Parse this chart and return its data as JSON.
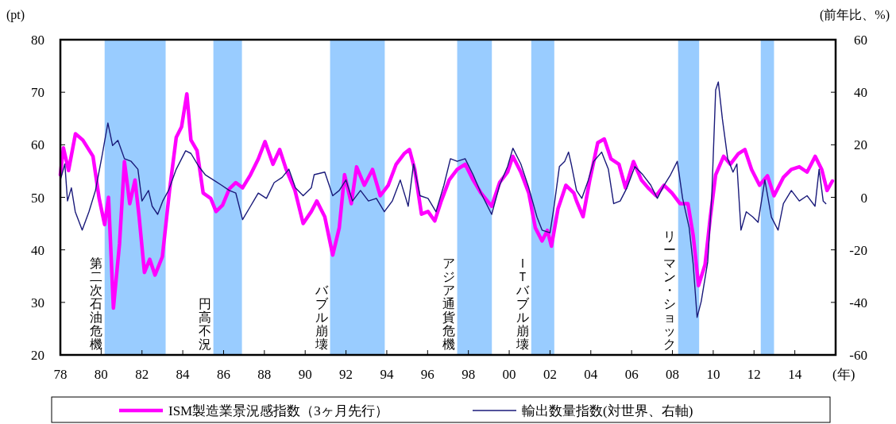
{
  "chart_data": {
    "type": "line",
    "xlabel": "(年)",
    "ylabel": "(pt)",
    "y2label": "(前年比、%)",
    "legend": "bottom",
    "grid": false,
    "xlim": [
      1978,
      2016
    ],
    "xticks": [
      {
        "value": 1978,
        "label": "78"
      },
      {
        "value": 1980,
        "label": "80"
      },
      {
        "value": 1982,
        "label": "82"
      },
      {
        "value": 1984,
        "label": "84"
      },
      {
        "value": 1986,
        "label": "86"
      },
      {
        "value": 1988,
        "label": "88"
      },
      {
        "value": 1990,
        "label": "90"
      },
      {
        "value": 1992,
        "label": "92"
      },
      {
        "value": 1994,
        "label": "94"
      },
      {
        "value": 1996,
        "label": "96"
      },
      {
        "value": 1998,
        "label": "98"
      },
      {
        "value": 2000,
        "label": "00"
      },
      {
        "value": 2002,
        "label": "02"
      },
      {
        "value": 2004,
        "label": "04"
      },
      {
        "value": 2006,
        "label": "06"
      },
      {
        "value": 2008,
        "label": "08"
      },
      {
        "value": 2010,
        "label": "10"
      },
      {
        "value": 2012,
        "label": "12"
      },
      {
        "value": 2014,
        "label": "14"
      }
    ],
    "ylim": [
      20,
      80
    ],
    "yticks": [
      20,
      30,
      40,
      50,
      60,
      70,
      80
    ],
    "y2lim": [
      -60,
      60
    ],
    "y2ticks": [
      -60,
      -40,
      -20,
      0,
      20,
      40,
      60
    ],
    "bands": [
      {
        "axis": "x",
        "from": 1980.17,
        "to": 1983.16,
        "label": "第二次石油危機",
        "color": "#99ccff"
      },
      {
        "axis": "x",
        "from": 1985.5,
        "to": 1986.9,
        "label": "円高不況",
        "color": "#99ccff"
      },
      {
        "axis": "x",
        "from": 1991.22,
        "to": 1993.9,
        "label": "バブル崩壊",
        "color": "#99ccff"
      },
      {
        "axis": "x",
        "from": 1997.45,
        "to": 1999.15,
        "label": "アジア通貨危機",
        "color": "#99ccff"
      },
      {
        "axis": "x",
        "from": 2001.08,
        "to": 2002.21,
        "label": "ＩＴバブル崩壊",
        "color": "#99ccff"
      },
      {
        "axis": "x",
        "from": 2008.28,
        "to": 2009.31,
        "label": "リーマン・ショック",
        "color": "#99ccff"
      },
      {
        "axis": "x",
        "from": 2012.33,
        "to": 2012.98,
        "color": "#99ccff"
      }
    ],
    "series": [
      {
        "name": "ISM製造業景況感指数（3ヶ月先行）",
        "color": "#ff00ff",
        "x": [
          1978.0,
          1978.15,
          1978.4,
          1978.74,
          1979.1,
          1979.6,
          1979.9,
          1980.17,
          1980.36,
          1980.6,
          1980.9,
          1981.14,
          1981.4,
          1981.66,
          1981.86,
          1982.12,
          1982.38,
          1982.64,
          1983.0,
          1983.35,
          1983.68,
          1983.94,
          1984.2,
          1984.4,
          1984.7,
          1985.0,
          1985.37,
          1985.63,
          1985.95,
          1986.28,
          1986.6,
          1986.93,
          1987.32,
          1987.7,
          1988.03,
          1988.42,
          1988.75,
          1989.07,
          1989.5,
          1989.9,
          1990.3,
          1990.57,
          1990.96,
          1991.35,
          1991.67,
          1991.93,
          1992.26,
          1992.52,
          1992.9,
          1993.3,
          1993.68,
          1994.07,
          1994.46,
          1994.85,
          1995.11,
          1995.37,
          1995.7,
          1996.02,
          1996.35,
          1996.67,
          1997.06,
          1997.45,
          1997.84,
          1998.23,
          1998.62,
          1999.14,
          1999.53,
          1999.92,
          2000.18,
          2000.57,
          2000.96,
          2001.28,
          2001.61,
          2001.87,
          2002.07,
          2002.39,
          2002.78,
          2003.17,
          2003.3,
          2003.62,
          2003.95,
          2004.34,
          2004.66,
          2004.99,
          2005.38,
          2005.7,
          2006.09,
          2006.48,
          2006.81,
          2007.2,
          2007.59,
          2007.98,
          2008.37,
          2008.76,
          2009.02,
          2009.28,
          2009.6,
          2009.86,
          2010.12,
          2010.51,
          2010.84,
          2011.23,
          2011.55,
          2011.88,
          2012.27,
          2012.66,
          2012.98,
          2013.44,
          2013.83,
          2014.22,
          2014.6,
          2015.0,
          2015.32,
          2015.58,
          2015.84
        ],
        "values": [
          54.3,
          59.4,
          55.1,
          62.1,
          60.9,
          57.8,
          49.8,
          44.8,
          50.0,
          28.9,
          41.2,
          56.8,
          48.8,
          53.3,
          46.3,
          35.7,
          38.2,
          35.2,
          38.7,
          51.3,
          61.4,
          63.4,
          69.7,
          60.9,
          58.9,
          50.8,
          49.8,
          47.3,
          48.5,
          51.6,
          52.8,
          51.8,
          54.3,
          57.3,
          60.6,
          56.3,
          59.1,
          55.3,
          51.3,
          45.0,
          47.3,
          49.3,
          46.3,
          39.0,
          44.2,
          54.3,
          48.8,
          55.8,
          52.3,
          55.3,
          50.3,
          52.3,
          56.3,
          58.3,
          59.1,
          55.3,
          46.8,
          47.3,
          45.5,
          49.3,
          53.3,
          55.3,
          56.3,
          53.3,
          50.8,
          48.3,
          52.8,
          54.8,
          57.8,
          54.8,
          50.8,
          44.2,
          41.7,
          43.7,
          40.7,
          47.8,
          52.3,
          50.8,
          49.3,
          46.3,
          53.3,
          60.4,
          61.1,
          57.3,
          56.3,
          51.8,
          56.8,
          53.3,
          51.8,
          50.3,
          52.3,
          50.8,
          48.8,
          48.8,
          42.7,
          33.2,
          37.2,
          46.3,
          54.3,
          57.8,
          56.3,
          58.3,
          59.1,
          55.3,
          52.3,
          54.1,
          50.3,
          53.8,
          55.3,
          55.8,
          54.8,
          57.8,
          55.3,
          51.3,
          53.1
        ]
      },
      {
        "name": "輸出数量指数(対世界、右軸)",
        "color": "#1a1a7a",
        "axis": "y2",
        "x": [
          1978.0,
          1978.22,
          1978.35,
          1978.54,
          1978.73,
          1979.07,
          1979.4,
          1979.72,
          1980.04,
          1980.33,
          1980.56,
          1980.82,
          1981.14,
          1981.47,
          1981.8,
          1982.0,
          1982.32,
          1982.5,
          1982.77,
          1983.02,
          1983.3,
          1983.68,
          1984.14,
          1984.4,
          1984.79,
          1985.1,
          1985.5,
          1985.9,
          1986.28,
          1986.6,
          1986.93,
          1987.32,
          1987.7,
          1988.1,
          1988.48,
          1988.87,
          1989.2,
          1989.52,
          1989.9,
          1990.3,
          1990.44,
          1990.96,
          1991.35,
          1991.67,
          1992.0,
          1992.32,
          1992.71,
          1993.1,
          1993.49,
          1993.88,
          1994.27,
          1994.66,
          1995.05,
          1995.31,
          1995.63,
          1996.02,
          1996.41,
          1996.8,
          1997.12,
          1997.45,
          1997.84,
          1998.23,
          1998.62,
          1999.14,
          1999.53,
          1999.92,
          2000.18,
          2000.57,
          2000.96,
          2001.36,
          2001.61,
          2002.0,
          2002.2,
          2002.46,
          2002.72,
          2002.91,
          2003.04,
          2003.3,
          2003.56,
          2003.88,
          2004.14,
          2004.53,
          2004.86,
          2005.12,
          2005.44,
          2005.77,
          2006.16,
          2006.55,
          2006.94,
          2007.26,
          2007.59,
          2007.91,
          2008.24,
          2008.5,
          2008.82,
          2009.02,
          2009.21,
          2009.41,
          2009.73,
          2009.93,
          2010.12,
          2010.25,
          2010.45,
          2010.71,
          2010.97,
          2011.16,
          2011.36,
          2011.62,
          2011.94,
          2012.2,
          2012.53,
          2012.85,
          2013.18,
          2013.44,
          2013.83,
          2014.22,
          2014.6,
          2014.99,
          2015.19,
          2015.39,
          2015.52
        ],
        "values": [
          6.6,
          12.7,
          -1.4,
          3.6,
          -5.5,
          -12.5,
          -5.5,
          2.6,
          15.7,
          28.3,
          19.7,
          21.7,
          14.7,
          13.7,
          10.7,
          -1.4,
          2.6,
          -3.4,
          -6.5,
          -1.4,
          2.6,
          10.7,
          17.7,
          16.7,
          11.7,
          8.6,
          6.6,
          4.6,
          2.6,
          1.6,
          -8.5,
          -3.4,
          1.6,
          -0.4,
          5.6,
          7.6,
          10.7,
          3.6,
          0.6,
          3.6,
          8.6,
          9.6,
          0.6,
          2.6,
          6.6,
          -1.4,
          2.6,
          -1.4,
          -0.4,
          -5.5,
          -1.4,
          6.6,
          -3.4,
          12.7,
          0.6,
          -0.4,
          -5.5,
          4.6,
          14.7,
          13.7,
          14.7,
          8.6,
          1.6,
          -6.5,
          4.6,
          11.7,
          18.7,
          12.7,
          3.6,
          -7.5,
          -12.5,
          -13.5,
          -3.4,
          11.7,
          13.7,
          17.2,
          12.7,
          2.6,
          -0.4,
          6.6,
          13.7,
          17.2,
          10.7,
          -2.4,
          -1.4,
          3.6,
          11.7,
          8.6,
          4.6,
          -0.4,
          4.6,
          8.6,
          13.7,
          -0.4,
          -11.5,
          -25.6,
          -45.7,
          -39.7,
          -24.6,
          0.6,
          40.9,
          43.9,
          29.8,
          14.7,
          9.6,
          12.7,
          -12.5,
          -5.5,
          -7.5,
          -9.5,
          6.6,
          -7.5,
          -12.5,
          -2.4,
          2.6,
          -1.4,
          0.6,
          -3.4,
          10.7,
          -1.4,
          -2.4
        ]
      }
    ]
  }
}
